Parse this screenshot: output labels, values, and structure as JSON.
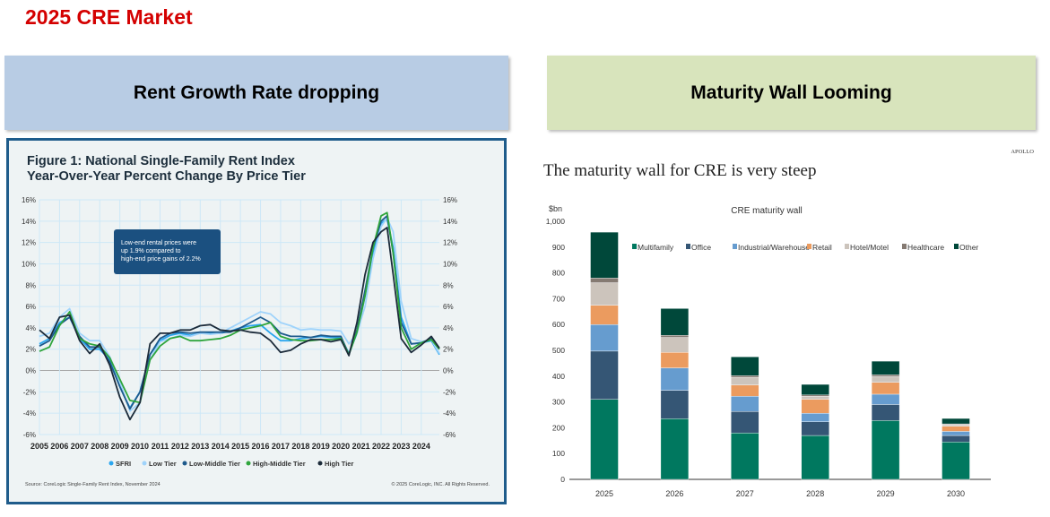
{
  "page_title": "2025 CRE Market",
  "left_header": "Rent Growth Rate dropping",
  "right_header": "Maturity Wall Looming",
  "chart_data": [
    {
      "type": "line",
      "title": "Figure 1: National Single-Family Rent Index",
      "subtitle": "Year-Over-Year Percent Change By Price Tier",
      "annotation": [
        "Low-end rental prices were",
        "up 1.9% compared to",
        "high-end price gains of 2.2%"
      ],
      "source": "Source: CoreLogic Single-Family Rent Index, November 2024",
      "copyright": "© 2025 CoreLogic, INC. All Rights Reserved.",
      "ylim": [
        -6,
        16
      ],
      "yticks": [
        "16%",
        "14%",
        "12%",
        "10%",
        "8%",
        "6%",
        "4%",
        "2%",
        "0%",
        "-2%",
        "-4%",
        "-6%"
      ],
      "xticks": [
        "2005",
        "2006",
        "2007",
        "2008",
        "2009",
        "2010",
        "2011",
        "2012",
        "2013",
        "2014",
        "2015",
        "2016",
        "2017",
        "2018",
        "2019",
        "2020",
        "2021",
        "2022",
        "2023",
        "2024"
      ],
      "xlim": [
        2005,
        2024.9
      ],
      "grid": true,
      "legend": "bottom",
      "x": [
        2005,
        2005.5,
        2006,
        2006.5,
        2007,
        2007.5,
        2008,
        2008.5,
        2009,
        2009.5,
        2010,
        2010.5,
        2011,
        2011.5,
        2012,
        2012.5,
        2013,
        2013.5,
        2014,
        2014.5,
        2015,
        2015.5,
        2016,
        2016.5,
        2017,
        2017.5,
        2018,
        2018.5,
        2019,
        2019.5,
        2020,
        2020.4,
        2020.8,
        2021.2,
        2021.6,
        2022,
        2022.3,
        2022.6,
        2023,
        2023.5,
        2024,
        2024.5,
        2024.9
      ],
      "series": [
        {
          "name": "SFRI",
          "color": "#2aa6ef",
          "values": [
            2.5,
            3,
            4.5,
            5,
            3,
            2,
            2,
            1,
            -1.5,
            -3.5,
            -2,
            1.5,
            2.8,
            3.3,
            3.5,
            3.3,
            3.5,
            3.5,
            3.5,
            3.7,
            4,
            4.2,
            4.3,
            3.5,
            2.8,
            2.8,
            3,
            3.1,
            3.2,
            3.1,
            3.1,
            1.6,
            3.5,
            7,
            11,
            13.8,
            14.2,
            11.5,
            5,
            2.5,
            2.6,
            2.8,
            1.5
          ]
        },
        {
          "name": "Low Tier",
          "color": "#9fd3fb",
          "values": [
            3.2,
            3.5,
            5,
            5.8,
            3.5,
            2.8,
            2.8,
            1.3,
            -1,
            -3.8,
            -3,
            1,
            2.7,
            3,
            3.3,
            3.2,
            3.5,
            3.4,
            3.5,
            4,
            4.5,
            5,
            5.5,
            5.3,
            4.5,
            4.2,
            3.8,
            3.9,
            3.8,
            3.8,
            3.7,
            2.5,
            3.5,
            6,
            10.5,
            13.5,
            14.3,
            13,
            6.5,
            3,
            2.7,
            2.9,
            1.6
          ]
        },
        {
          "name": "Low-Middle Tier",
          "color": "#1e5a8c",
          "values": [
            2.3,
            2.8,
            4.3,
            5,
            3.2,
            2.2,
            2.2,
            0.8,
            -1.5,
            -3.6,
            -2,
            1.5,
            3,
            3.5,
            3.6,
            3.5,
            3.6,
            3.6,
            3.6,
            3.6,
            4,
            4.5,
            5,
            4.5,
            3.5,
            3.2,
            3.2,
            3.1,
            3.3,
            3.2,
            3.2,
            1.5,
            3.8,
            7.5,
            11.5,
            14,
            14.5,
            11,
            4.5,
            2.5,
            2.6,
            3,
            2
          ]
        },
        {
          "name": "High-Middle Tier",
          "color": "#2fa53c",
          "values": [
            1.8,
            2.2,
            4.2,
            5.5,
            3,
            2.5,
            2.3,
            1.2,
            -0.8,
            -2.8,
            -3,
            1,
            2.3,
            3,
            3.2,
            2.8,
            2.8,
            2.9,
            3,
            3.3,
            3.8,
            4,
            4.2,
            4.5,
            3.2,
            2.9,
            2.8,
            2.8,
            2.9,
            2.9,
            3,
            1.5,
            3.6,
            7,
            11.5,
            14.5,
            14.8,
            11,
            4,
            2,
            2.6,
            2.9,
            2
          ]
        },
        {
          "name": "High Tier",
          "color": "#1c2b3a",
          "values": [
            3.8,
            3,
            5,
            5.2,
            2.8,
            1.6,
            2.5,
            0.5,
            -2.5,
            -4.6,
            -3,
            2.5,
            3.5,
            3.5,
            3.8,
            3.8,
            4.2,
            4.3,
            3.8,
            3.7,
            3.8,
            3.6,
            3.5,
            2.8,
            1.7,
            1.9,
            2.5,
            2.9,
            2.9,
            2.7,
            2.9,
            1.4,
            4.5,
            9,
            12,
            13,
            13.4,
            9,
            3,
            1.7,
            2.4,
            3.2,
            2.1
          ]
        }
      ]
    },
    {
      "type": "bar",
      "stacked": true,
      "brand": "APOLLO",
      "headline": "The maturity wall for CRE is very steep",
      "title": "CRE maturity wall",
      "ylabel": "$bn",
      "ylim": [
        0,
        1000
      ],
      "yticks": [
        "0",
        "100",
        "200",
        "300",
        "400",
        "500",
        "600",
        "700",
        "800",
        "900",
        "1,000"
      ],
      "legend": "top",
      "categories": [
        "2025",
        "2026",
        "2027",
        "2028",
        "2029",
        "2030"
      ],
      "series": [
        {
          "name": "Multifamily",
          "color": "#00785f",
          "values": [
            310,
            235,
            180,
            170,
            228,
            145
          ]
        },
        {
          "name": "Office",
          "color": "#355675",
          "values": [
            187,
            110,
            83,
            53,
            62,
            25
          ]
        },
        {
          "name": "Industrial/Warehouse",
          "color": "#669ccf",
          "values": [
            103,
            87,
            59,
            33,
            40,
            16
          ]
        },
        {
          "name": "Retail",
          "color": "#eb9b5f",
          "values": [
            75,
            60,
            44,
            54,
            46,
            20
          ]
        },
        {
          "name": "Hotel/Motel",
          "color": "#ccc4bc",
          "values": [
            87,
            58,
            29,
            12,
            22,
            6
          ]
        },
        {
          "name": "Healthcare",
          "color": "#857a72",
          "values": [
            18,
            8,
            7,
            5,
            7,
            3
          ]
        },
        {
          "name": "Other",
          "color": "#00483a",
          "values": [
            178,
            104,
            73,
            41,
            53,
            21
          ]
        }
      ]
    }
  ]
}
